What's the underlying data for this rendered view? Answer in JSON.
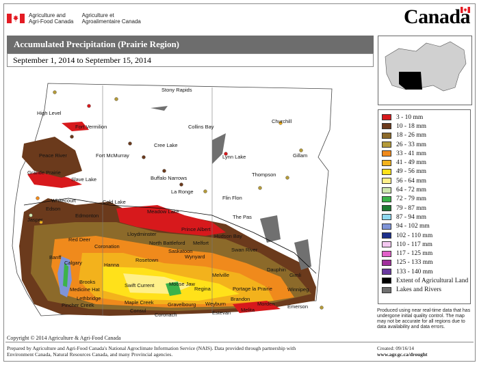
{
  "header": {
    "agency_en_line1": "Agriculture and",
    "agency_en_line2": "Agri-Food Canada",
    "agency_fr_line1": "Agriculture et",
    "agency_fr_line2": "Agroalimentaire Canada",
    "wordmark": "Canada"
  },
  "map_title": "Accumulated Precipitation (Prairie Region)",
  "date_range": "September 1, 2014 to September 15, 2014",
  "legend": [
    {
      "label": "3 - 10 mm",
      "color": "#d7191c"
    },
    {
      "label": "10 - 18 mm",
      "color": "#6b3a1c"
    },
    {
      "label": "18 - 26 mm",
      "color": "#8c6a2a"
    },
    {
      "label": "26 - 33 mm",
      "color": "#b49a3a"
    },
    {
      "label": "33 - 41 mm",
      "color": "#f08a1c"
    },
    {
      "label": "41 - 49 mm",
      "color": "#f3b21c"
    },
    {
      "label": "49 - 56 mm",
      "color": "#ffe11a"
    },
    {
      "label": "56 - 64 mm",
      "color": "#fff08a"
    },
    {
      "label": "64 - 72 mm",
      "color": "#cfe8b0"
    },
    {
      "label": "72 - 79 mm",
      "color": "#3cb34a"
    },
    {
      "label": "79 - 87 mm",
      "color": "#1e7a33"
    },
    {
      "label": "87 - 94 mm",
      "color": "#8fd8f0"
    },
    {
      "label": "94 - 102 mm",
      "color": "#7f94d8"
    },
    {
      "label": "102 - 110 mm",
      "color": "#1c2f8c"
    },
    {
      "label": "110 - 117 mm",
      "color": "#f3c8f0"
    },
    {
      "label": "117 - 125 mm",
      "color": "#e060c8"
    },
    {
      "label": "125 - 133 mm",
      "color": "#a0309c"
    },
    {
      "label": "133 - 140 mm",
      "color": "#6a3aa0"
    },
    {
      "label": "Extent of Agricultural Land",
      "color": "#000000"
    },
    {
      "label": "Lakes and Rivers",
      "color": "#707070"
    }
  ],
  "places": [
    "Stony Rapids",
    "High Level",
    "Fort Vermilion",
    "Collins Bay",
    "Churchill",
    "Peace River",
    "Fort McMurray",
    "Cree Lake",
    "Lynn Lake",
    "Gillam",
    "Grande Prairie",
    "Slave Lake",
    "Buffalo Narrows",
    "Thompson",
    "La Ronge",
    "Whitecourt",
    "Cold Lake",
    "Flin Flon",
    "Edson",
    "Edmonton",
    "Meadow Lake",
    "The Pas",
    "Jasper",
    "Lloydminster",
    "Prince Albert",
    "Red Deer",
    "North Battleford",
    "Hudson Bay",
    "Coronation",
    "Melfort",
    "Saskatoon",
    "Banff",
    "Calgary",
    "Hanna",
    "Swan River",
    "Rosetown",
    "Wynyard",
    "Dauphin",
    "Gimli",
    "Brooks",
    "Melville",
    "Winnipeg",
    "Medicine Hat",
    "Swift Current",
    "Moose Jaw",
    "Regina",
    "Portage la Prairie",
    "Lethbridge",
    "Maple Creek",
    "Gravelbourg",
    "Brandon",
    "Pincher Creek",
    "Consul",
    "Weyburn",
    "Morden",
    "Emerson",
    "Coronach",
    "Estevan",
    "Melita"
  ],
  "disclaimer": "Produced using near real-time data that has undergone initial quality control.  The map may not be accurate for all regions due to data availability and data errors.",
  "copyright": "Copyright © 2014 Agriculture & Agri-Food Canada",
  "credits": "Prepared by Agriculture and Agri-Food Canada's National Agroclimate Information Service (NAIS).  Data provided through partnership with Environment Canada, Natural Resources Canada, and many Provincial agencies.",
  "created_label": "Created: 09/16/14",
  "url": "www.agr.gc.ca/drought"
}
